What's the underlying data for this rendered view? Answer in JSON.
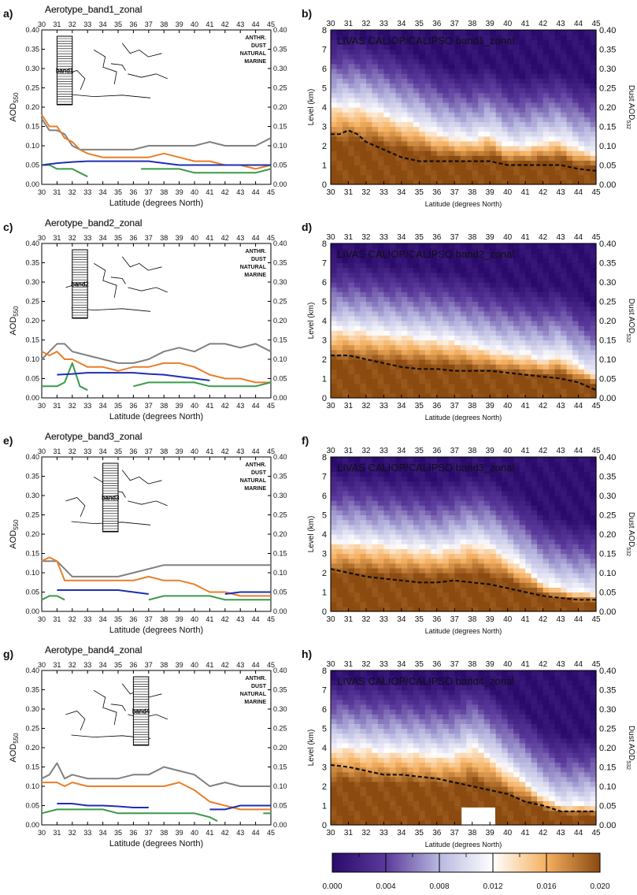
{
  "panels_left": [
    {
      "letter": "a)",
      "title": "Aerotype_band1_zonal",
      "band_label": "band1",
      "map_lat": [
        31,
        32
      ]
    },
    {
      "letter": "c)",
      "title": "Aerotype_band2_zonal",
      "band_label": "band2",
      "map_lat": [
        32,
        33
      ]
    },
    {
      "letter": "e)",
      "title": "Aerotype_band3_zonal",
      "band_label": "band3",
      "map_lat": [
        34,
        35
      ]
    },
    {
      "letter": "g)",
      "title": "Aerotype_band4_zonal",
      "band_label": "band4",
      "map_lat": [
        36,
        37
      ]
    }
  ],
  "panels_right": [
    {
      "letter": "b)",
      "title": "LIVAS CALIOP/CALIPSO band1_zonal"
    },
    {
      "letter": "d)",
      "title": "LIVAS CALIOP/CALIPSO band2_zonal"
    },
    {
      "letter": "f)",
      "title": "LIVAS CALIOP/CALIPSO band3_zonal"
    },
    {
      "letter": "h)",
      "title": "LIVAS CALIOP/CALIPSO band4_zonal"
    }
  ],
  "left_axes": {
    "xlabel": "Latitude (degrees North)",
    "ylabel_main": "AOD",
    "ylabel_sub": "550",
    "xlim": [
      30,
      45
    ],
    "ylim": [
      0,
      0.4
    ],
    "xticks": [
      "30",
      "31",
      "32",
      "33",
      "34",
      "35",
      "36",
      "37",
      "38",
      "39",
      "40",
      "41",
      "42",
      "43",
      "44",
      "45"
    ],
    "yticks": [
      "0.00",
      "0.05",
      "0.10",
      "0.15",
      "0.20",
      "0.25",
      "0.30",
      "0.35",
      "0.40"
    ]
  },
  "right_axes": {
    "xlabel": "Latitude (degrees North)",
    "ylabel_left": "Level (km)",
    "ylabel_right_main": "Dust AOD",
    "ylabel_right_sub": "532",
    "xlim": [
      30,
      45
    ],
    "ylim": [
      0,
      8
    ],
    "y2lim": [
      0,
      0.4
    ],
    "xticks": [
      "30",
      "31",
      "32",
      "33",
      "34",
      "35",
      "36",
      "37",
      "38",
      "39",
      "40",
      "41",
      "42",
      "43",
      "44",
      "45"
    ],
    "yticks": [
      "0",
      "1",
      "2",
      "3",
      "4",
      "5",
      "6",
      "7",
      "8"
    ],
    "y2ticks": [
      "0.00",
      "0.05",
      "0.10",
      "0.15",
      "0.20",
      "0.25",
      "0.30",
      "0.35",
      "0.40"
    ]
  },
  "legend": [
    {
      "name": "ANTHR.",
      "color": "#444444"
    },
    {
      "name": "DUST",
      "color": "#e07820"
    },
    {
      "name": "NATURAL",
      "color": "#2a8a3a"
    },
    {
      "name": "MARINE",
      "color": "#1a2aa8"
    }
  ],
  "series_colors": {
    "anthr": "#808080",
    "dust": "#e87f2a",
    "natural": "#3a9a4a",
    "marine": "#1f2fb0",
    "dust_aod_line": "#111111"
  },
  "colorbar": {
    "ticks": [
      "0.000",
      "0.004",
      "0.008",
      "0.012",
      "0.016",
      "0.020"
    ],
    "range": [
      0,
      0.02
    ],
    "colors": [
      "#2a0a6a",
      "#5a3a9a",
      "#b8b8e0",
      "#ffffff",
      "#f5b060",
      "#8a4a10"
    ]
  },
  "chart_data": [
    {
      "type": "line",
      "title": "Aerotype_band1_zonal",
      "xlabel": "Latitude (degrees North)",
      "ylabel": "AOD550",
      "xlim": [
        30,
        45
      ],
      "ylim": [
        0,
        0.4
      ],
      "series": [
        {
          "name": "ANTHR.",
          "x": [
            30,
            30.5,
            31,
            31.5,
            32,
            32.5,
            33,
            34,
            35,
            36,
            37,
            38,
            39,
            40,
            41,
            42,
            43,
            44,
            45
          ],
          "values": [
            0.17,
            0.14,
            0.14,
            0.13,
            0.1,
            0.09,
            0.09,
            0.09,
            0.09,
            0.09,
            0.1,
            0.1,
            0.1,
            0.1,
            0.11,
            0.1,
            0.1,
            0.1,
            0.12
          ]
        },
        {
          "name": "DUST",
          "x": [
            30,
            30.5,
            31,
            31.5,
            32,
            32.5,
            33,
            34,
            35,
            36,
            37,
            38,
            39,
            40,
            41,
            42,
            43,
            44,
            45
          ],
          "values": [
            0.18,
            0.15,
            0.15,
            0.12,
            0.11,
            0.09,
            0.08,
            0.07,
            0.07,
            0.07,
            0.07,
            0.08,
            0.07,
            0.06,
            0.06,
            0.05,
            0.05,
            0.04,
            0.05
          ]
        },
        {
          "name": "NATURAL",
          "x": [
            30,
            30.5,
            31,
            31.5,
            32,
            32.5,
            33
          ],
          "values": [
            0.05,
            0.05,
            0.04,
            0.04,
            0.04,
            0.03,
            0.02
          ]
        },
        {
          "name": "NATURAL",
          "x": [
            36.5,
            37,
            38,
            39,
            40,
            41,
            42,
            43,
            44,
            45
          ],
          "values": [
            0.04,
            0.04,
            0.04,
            0.04,
            0.03,
            0.03,
            0.03,
            0.03,
            0.03,
            0.04
          ]
        },
        {
          "name": "MARINE",
          "x": [
            30,
            31,
            32,
            33,
            34,
            35,
            36,
            37,
            38,
            39,
            40,
            41,
            42,
            43,
            44,
            45
          ],
          "values": [
            0.05,
            0.055,
            0.058,
            0.06,
            0.06,
            0.06,
            0.06,
            0.06,
            0.055,
            0.05,
            0.05,
            0.05,
            0.05,
            0.05,
            0.05,
            0.05
          ]
        }
      ]
    },
    {
      "type": "heatmap",
      "title": "LIVAS CALIOP/CALIPSO band1_zonal",
      "xlabel": "Latitude (degrees North)",
      "ylabel": "Level (km)",
      "xlim": [
        30,
        45
      ],
      "ylim": [
        0,
        8
      ],
      "layer_top_km": [
        4.0,
        4.0,
        3.9,
        3.6,
        3.3,
        3.0,
        2.6,
        2.4,
        2.3,
        2.6,
        2.0,
        2.0,
        2.2,
        2.3,
        1.8,
        1.6
      ],
      "dust_aod_532": {
        "x": [
          30,
          30.5,
          31,
          31.5,
          32,
          33,
          34,
          35,
          36,
          37,
          38,
          39,
          40,
          41,
          42,
          43,
          44,
          45
        ],
        "values": [
          0.13,
          0.13,
          0.14,
          0.13,
          0.11,
          0.09,
          0.07,
          0.06,
          0.06,
          0.06,
          0.06,
          0.06,
          0.05,
          0.05,
          0.05,
          0.05,
          0.04,
          0.035
        ]
      }
    },
    {
      "type": "line",
      "title": "Aerotype_band2_zonal",
      "xlabel": "Latitude (degrees North)",
      "ylabel": "AOD550",
      "xlim": [
        30,
        45
      ],
      "ylim": [
        0,
        0.4
      ],
      "series": [
        {
          "name": "ANTHR.",
          "x": [
            30,
            30.5,
            31,
            31.5,
            32,
            33,
            34,
            35,
            36,
            37,
            38,
            39,
            40,
            41,
            42,
            43,
            44,
            45
          ],
          "values": [
            0.1,
            0.12,
            0.14,
            0.14,
            0.12,
            0.11,
            0.1,
            0.09,
            0.09,
            0.1,
            0.12,
            0.13,
            0.12,
            0.14,
            0.14,
            0.13,
            0.14,
            0.12
          ]
        },
        {
          "name": "DUST",
          "x": [
            30,
            30.5,
            31,
            31.5,
            32,
            33,
            34,
            35,
            36,
            37,
            38,
            39,
            40,
            41,
            42,
            43,
            44,
            45
          ],
          "values": [
            0.12,
            0.11,
            0.12,
            0.1,
            0.1,
            0.08,
            0.08,
            0.07,
            0.08,
            0.08,
            0.09,
            0.09,
            0.08,
            0.06,
            0.05,
            0.05,
            0.04,
            0.04
          ]
        },
        {
          "name": "NATURAL",
          "x": [
            30,
            30.5,
            31,
            31.5,
            32,
            32.5,
            33
          ],
          "values": [
            0.03,
            0.03,
            0.03,
            0.04,
            0.09,
            0.03,
            0.02
          ]
        },
        {
          "name": "NATURAL",
          "x": [
            36,
            37,
            38,
            39,
            40,
            41,
            42,
            43,
            44,
            45
          ],
          "values": [
            0.03,
            0.04,
            0.04,
            0.04,
            0.04,
            0.03,
            0.03,
            0.03,
            0.03,
            0.04
          ]
        },
        {
          "name": "MARINE",
          "x": [
            31,
            32,
            33,
            34,
            35,
            36,
            37,
            38,
            39,
            40,
            41
          ],
          "values": [
            0.06,
            0.062,
            0.065,
            0.065,
            0.065,
            0.065,
            0.062,
            0.06,
            0.055,
            0.05,
            0.045
          ]
        }
      ]
    },
    {
      "type": "heatmap",
      "title": "LIVAS CALIOP/CALIPSO band2_zonal",
      "xlabel": "Latitude (degrees North)",
      "ylabel": "Level (km)",
      "xlim": [
        30,
        45
      ],
      "ylim": [
        0,
        8
      ],
      "layer_top_km": [
        3.5,
        3.5,
        3.4,
        3.3,
        3.2,
        3.1,
        3.0,
        2.9,
        2.7,
        2.5,
        2.3,
        2.2,
        2.0,
        2.2,
        1.6,
        1.2
      ],
      "dust_aod_532": {
        "x": [
          30,
          31,
          32,
          33,
          34,
          35,
          36,
          37,
          38,
          39,
          40,
          41,
          42,
          43,
          44,
          45
        ],
        "values": [
          0.11,
          0.11,
          0.1,
          0.09,
          0.08,
          0.075,
          0.075,
          0.07,
          0.07,
          0.07,
          0.065,
          0.06,
          0.055,
          0.05,
          0.04,
          0.02
        ]
      }
    },
    {
      "type": "line",
      "title": "Aerotype_band3_zonal",
      "xlabel": "Latitude (degrees North)",
      "ylabel": "AOD550",
      "xlim": [
        30,
        45
      ],
      "ylim": [
        0,
        0.4
      ],
      "series": [
        {
          "name": "ANTHR.",
          "x": [
            30,
            30.5,
            31,
            31.5,
            32,
            33,
            34,
            35,
            36,
            37,
            38,
            39,
            40,
            41,
            42,
            43,
            44,
            45
          ],
          "values": [
            0.13,
            0.13,
            0.13,
            0.11,
            0.09,
            0.09,
            0.09,
            0.09,
            0.1,
            0.11,
            0.12,
            0.12,
            0.12,
            0.12,
            0.12,
            0.12,
            0.12,
            0.12
          ]
        },
        {
          "name": "DUST",
          "x": [
            30,
            30.5,
            31,
            31.5,
            32,
            33,
            34,
            35,
            36,
            37,
            38,
            39,
            40,
            41,
            42,
            43,
            44,
            45
          ],
          "values": [
            0.13,
            0.14,
            0.13,
            0.08,
            0.08,
            0.08,
            0.08,
            0.08,
            0.08,
            0.09,
            0.08,
            0.08,
            0.07,
            0.05,
            0.05,
            0.04,
            0.04,
            0.04
          ]
        },
        {
          "name": "NATURAL",
          "x": [
            30,
            30.5,
            31,
            31.5
          ],
          "values": [
            0.03,
            0.04,
            0.04,
            0.03
          ]
        },
        {
          "name": "NATURAL",
          "x": [
            37,
            38,
            39,
            40,
            41,
            42,
            43,
            44,
            45
          ],
          "values": [
            0.03,
            0.04,
            0.04,
            0.04,
            0.04,
            0.03,
            0.03,
            0.03,
            0.03
          ]
        },
        {
          "name": "MARINE",
          "x": [
            31,
            32,
            33,
            34,
            35,
            36,
            37
          ],
          "values": [
            0.055,
            0.055,
            0.055,
            0.055,
            0.055,
            0.05,
            0.045
          ]
        },
        {
          "name": "MARINE",
          "x": [
            42,
            43,
            44,
            45
          ],
          "values": [
            0.045,
            0.05,
            0.05,
            0.05
          ]
        }
      ]
    },
    {
      "type": "heatmap",
      "title": "LIVAS CALIOP/CALIPSO band3_zonal",
      "xlabel": "Latitude (degrees North)",
      "ylabel": "Level (km)",
      "xlim": [
        30,
        45
      ],
      "ylim": [
        0,
        8
      ],
      "layer_top_km": [
        3.6,
        3.6,
        3.5,
        3.4,
        3.3,
        3.2,
        3.1,
        3.3,
        3.5,
        3.3,
        2.8,
        2.2,
        1.5,
        1.2,
        1.0,
        0.9
      ],
      "dust_aod_532": {
        "x": [
          30,
          31,
          32,
          33,
          34,
          35,
          36,
          37,
          38,
          39,
          40,
          41,
          42,
          43,
          44,
          45
        ],
        "values": [
          0.11,
          0.1,
          0.09,
          0.085,
          0.08,
          0.075,
          0.075,
          0.08,
          0.075,
          0.07,
          0.06,
          0.05,
          0.04,
          0.035,
          0.03,
          0.03
        ]
      }
    },
    {
      "type": "line",
      "title": "Aerotype_band4_zonal",
      "xlabel": "Latitude (degrees North)",
      "ylabel": "AOD550",
      "xlim": [
        30,
        45
      ],
      "ylim": [
        0,
        0.4
      ],
      "series": [
        {
          "name": "ANTHR.",
          "x": [
            30,
            30.5,
            31,
            31.5,
            32,
            33,
            34,
            35,
            36,
            37,
            38,
            39,
            40,
            41,
            42,
            43,
            44,
            45
          ],
          "values": [
            0.12,
            0.13,
            0.16,
            0.12,
            0.13,
            0.12,
            0.12,
            0.12,
            0.13,
            0.13,
            0.15,
            0.14,
            0.13,
            0.1,
            0.11,
            0.1,
            0.1,
            0.1
          ]
        },
        {
          "name": "DUST",
          "x": [
            30,
            30.5,
            31,
            31.5,
            32,
            33,
            34,
            35,
            36,
            37,
            38,
            39,
            40,
            41,
            42,
            43,
            44,
            45
          ],
          "values": [
            0.11,
            0.11,
            0.11,
            0.1,
            0.11,
            0.1,
            0.1,
            0.1,
            0.1,
            0.1,
            0.1,
            0.11,
            0.09,
            0.06,
            0.05,
            0.04,
            0.04,
            0.04
          ]
        },
        {
          "name": "NATURAL",
          "x": [
            30,
            31,
            32,
            33,
            34,
            35,
            36,
            37,
            38,
            39,
            40,
            41,
            41.5
          ],
          "values": [
            0.03,
            0.04,
            0.04,
            0.04,
            0.04,
            0.03,
            0.03,
            0.03,
            0.03,
            0.03,
            0.03,
            0.02,
            0.01
          ]
        },
        {
          "name": "NATURAL",
          "x": [
            44.5,
            45
          ],
          "values": [
            0.03,
            0.03
          ]
        },
        {
          "name": "MARINE",
          "x": [
            31,
            32,
            33,
            34,
            35,
            36,
            37
          ],
          "values": [
            0.055,
            0.055,
            0.05,
            0.05,
            0.048,
            0.045,
            0.045
          ]
        },
        {
          "name": "MARINE",
          "x": [
            41,
            42,
            43,
            44,
            45
          ],
          "values": [
            0.04,
            0.04,
            0.05,
            0.05,
            0.05
          ]
        }
      ]
    },
    {
      "type": "heatmap",
      "title": "LIVAS CALIOP/CALIPSO band4_zonal",
      "xlabel": "Latitude (degrees North)",
      "ylabel": "Level (km)",
      "xlim": [
        30,
        45
      ],
      "ylim": [
        0,
        8
      ],
      "layer_top_km": [
        4.0,
        4.0,
        3.9,
        3.8,
        3.8,
        3.7,
        3.6,
        3.6,
        4.0,
        3.5,
        2.8,
        2.2,
        1.5,
        1.0,
        1.0,
        1.0
      ],
      "dust_aod_532": {
        "x": [
          30,
          31,
          32,
          33,
          34,
          35,
          36,
          37,
          38,
          39,
          40,
          41,
          42,
          43,
          44,
          45
        ],
        "values": [
          0.155,
          0.15,
          0.14,
          0.13,
          0.13,
          0.125,
          0.12,
          0.11,
          0.1,
          0.09,
          0.08,
          0.06,
          0.05,
          0.035,
          0.035,
          0.035
        ]
      }
    }
  ]
}
